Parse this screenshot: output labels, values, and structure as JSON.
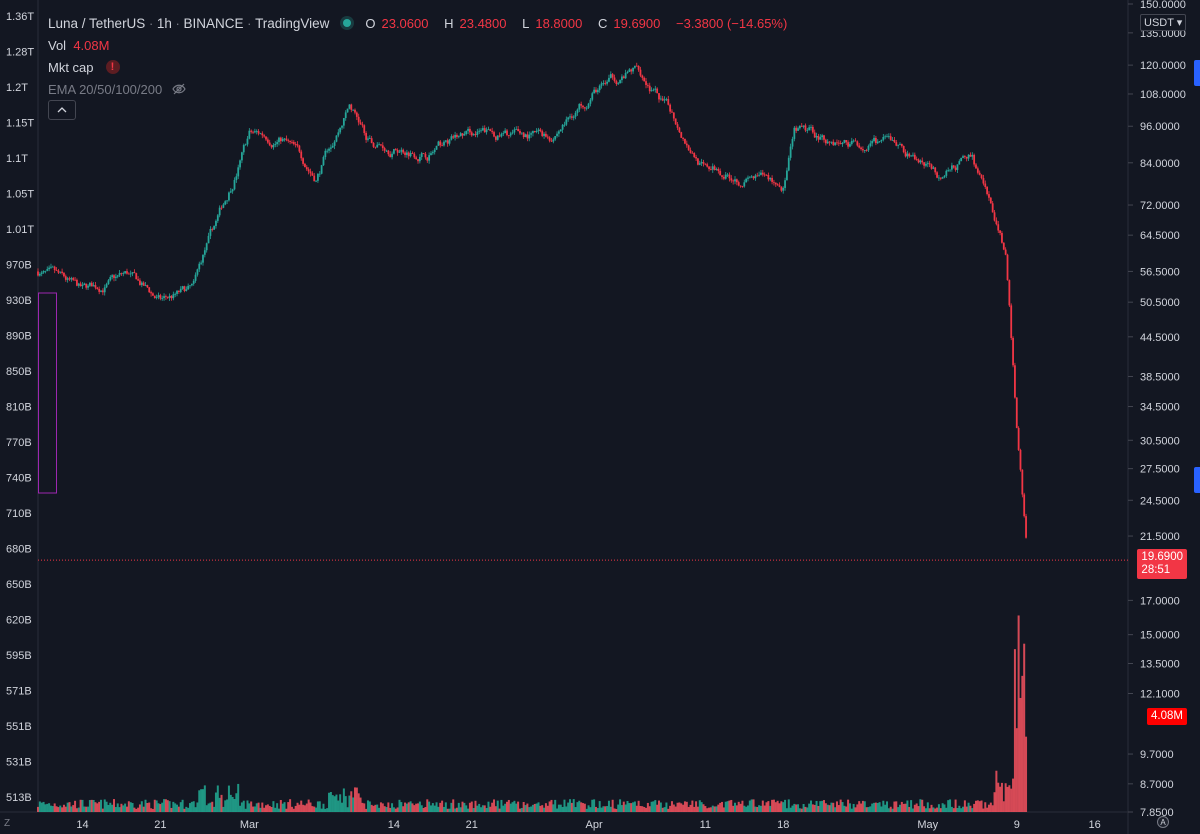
{
  "header": {
    "symbol": "Luna / TetherUS",
    "interval": "1h",
    "exchange": "BINANCE",
    "source": "TradingView",
    "ohlc": {
      "o_label": "O",
      "o": "23.0600",
      "h_label": "H",
      "h": "23.4800",
      "l_label": "L",
      "l": "18.8000",
      "c_label": "C",
      "c": "19.6900",
      "change": "−3.3800 (−14.65%)"
    }
  },
  "indicators": {
    "vol_label": "Vol",
    "vol_value": "4.08M",
    "mkt_cap_label": "Mkt cap",
    "ema_label": "EMA 20/50/100/200"
  },
  "price_axis": {
    "currency": "USDT",
    "ticks": [
      "150.0000",
      "135.0000",
      "120.0000",
      "108.0000",
      "96.0000",
      "84.0000",
      "72.0000",
      "64.5000",
      "56.5000",
      "50.5000",
      "44.5000",
      "38.5000",
      "34.5000",
      "30.5000",
      "27.5000",
      "24.5000",
      "21.5000",
      "17.0000",
      "15.0000",
      "13.5000",
      "12.1000",
      "9.7000",
      "8.7000",
      "7.8500"
    ],
    "current_price": "19.6900",
    "countdown": "28:51",
    "volume_label": "4.08M"
  },
  "left_axis": {
    "ticks": [
      "1.36T",
      "1.28T",
      "1.2T",
      "1.15T",
      "1.1T",
      "1.05T",
      "1.01T",
      "970B",
      "930B",
      "890B",
      "850B",
      "810B",
      "770B",
      "740B",
      "710B",
      "680B",
      "650B",
      "620B",
      "595B",
      "571B",
      "551B",
      "531B",
      "513B"
    ]
  },
  "time_axis": {
    "ticks": [
      "14",
      "21",
      "Mar",
      "14",
      "21",
      "Apr",
      "11",
      "18",
      "May",
      "9",
      "16"
    ]
  },
  "colors": {
    "background": "#131722",
    "up": "#26a69a",
    "down": "#f23645",
    "vol_up": "#22ab94",
    "vol_down": "#f7525f",
    "highlight_box": "#9c27b0"
  },
  "chart_data": {
    "type": "candlestick",
    "scale": "log",
    "ylim": [
      7.85,
      150
    ],
    "x_start": "Feb 10",
    "x_end": "May 19",
    "price_path": [
      {
        "date": "Feb 10",
        "close": 56.5
      },
      {
        "date": "Feb 14",
        "close": 52.0
      },
      {
        "date": "Feb 18",
        "close": 55.5
      },
      {
        "date": "Feb 21",
        "close": 50.5
      },
      {
        "date": "Feb 24",
        "close": 52.5
      },
      {
        "date": "Feb 25",
        "close": 60.0
      },
      {
        "date": "Feb 27",
        "close": 74.0
      },
      {
        "date": "Mar 1",
        "close": 93.0
      },
      {
        "date": "Mar 4",
        "close": 92.0
      },
      {
        "date": "Mar 7",
        "close": 80.0
      },
      {
        "date": "Mar 10",
        "close": 104.0
      },
      {
        "date": "Mar 12",
        "close": 90.0
      },
      {
        "date": "Mar 17",
        "close": 88.0
      },
      {
        "date": "Mar 21",
        "close": 93.0
      },
      {
        "date": "Mar 28",
        "close": 92.0
      },
      {
        "date": "Apr 1",
        "close": 110.0
      },
      {
        "date": "Apr 5",
        "close": 118.0
      },
      {
        "date": "Apr 8",
        "close": 100.0
      },
      {
        "date": "Apr 11",
        "close": 82.0
      },
      {
        "date": "Apr 15",
        "close": 80.0
      },
      {
        "date": "Apr 18",
        "close": 77.0
      },
      {
        "date": "Apr 19",
        "close": 93.0
      },
      {
        "date": "Apr 25",
        "close": 90.0
      },
      {
        "date": "Apr 28",
        "close": 89.0
      },
      {
        "date": "May 2",
        "close": 80.0
      },
      {
        "date": "May 5",
        "close": 86.0
      },
      {
        "date": "May 7",
        "close": 68.0
      },
      {
        "date": "May 8",
        "close": 60.0
      },
      {
        "date": "May 9",
        "close": 32.0
      },
      {
        "date": "May 10",
        "close": 19.69
      }
    ],
    "last": {
      "open": 23.06,
      "high": 23.48,
      "low": 18.8,
      "close": 19.69,
      "change": -3.38,
      "change_pct": -14.65
    },
    "volume_last": "4.08M"
  }
}
